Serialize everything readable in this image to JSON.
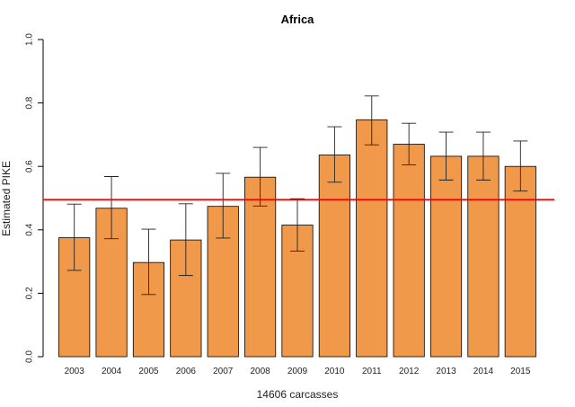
{
  "chart_data": {
    "type": "bar",
    "title": "Africa",
    "xlabel": "14606 carcasses",
    "ylabel": "Estimated PIKE",
    "categories": [
      "2003",
      "2004",
      "2005",
      "2006",
      "2007",
      "2008",
      "2009",
      "2010",
      "2011",
      "2012",
      "2013",
      "2014",
      "2015"
    ],
    "values": [
      0.375,
      0.468,
      0.297,
      0.368,
      0.474,
      0.566,
      0.415,
      0.636,
      0.747,
      0.67,
      0.632,
      0.632,
      0.6
    ],
    "error_low": [
      0.272,
      0.372,
      0.196,
      0.256,
      0.374,
      0.475,
      0.333,
      0.55,
      0.668,
      0.605,
      0.557,
      0.557,
      0.522
    ],
    "error_high": [
      0.481,
      0.568,
      0.402,
      0.482,
      0.578,
      0.66,
      0.498,
      0.725,
      0.822,
      0.736,
      0.708,
      0.708,
      0.68
    ],
    "yticks": [
      "0.0",
      "0.2",
      "0.4",
      "0.6",
      "0.8",
      "1.0"
    ],
    "ylim": [
      0,
      1.0
    ],
    "reference_line": 0.495,
    "bar_color": "#f0994a",
    "reference_line_color": "#ff0000",
    "grid": false
  }
}
